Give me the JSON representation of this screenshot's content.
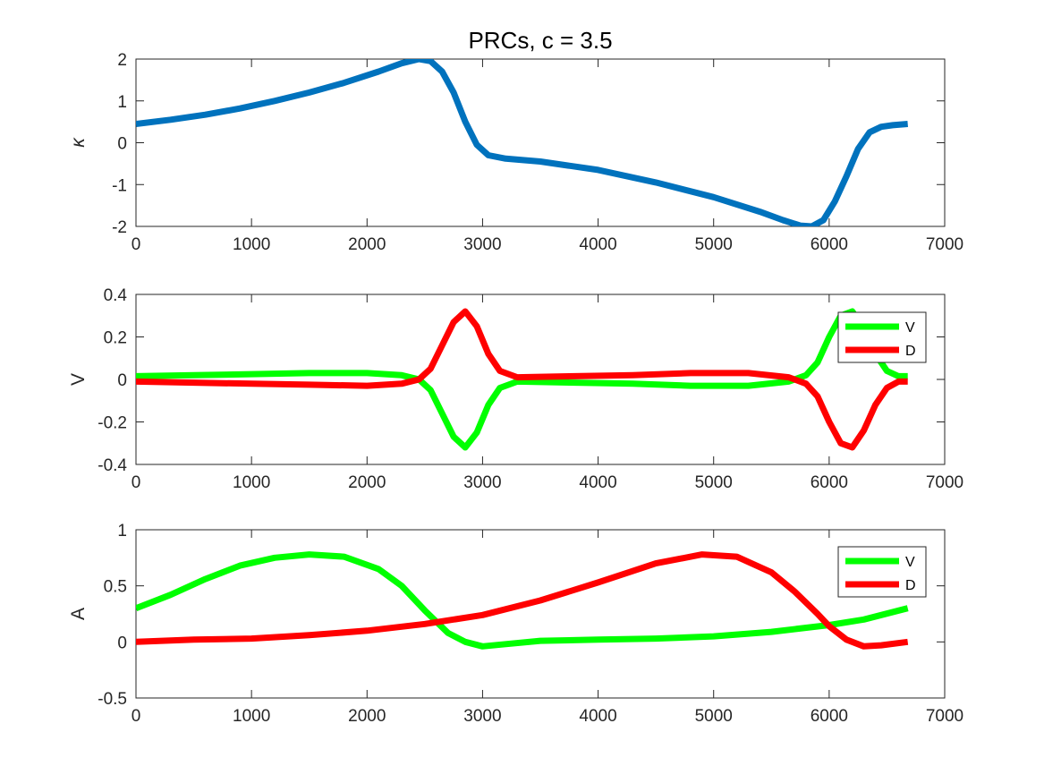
{
  "title": "PRCs, c = 3.5",
  "chart_data": [
    {
      "type": "line",
      "ylabel": "κ",
      "xlim": [
        0,
        7000
      ],
      "ylim": [
        -2,
        2
      ],
      "xticks": [
        0,
        1000,
        2000,
        3000,
        4000,
        5000,
        6000,
        7000
      ],
      "yticks": [
        -2,
        -1,
        0,
        1,
        2
      ],
      "xtick_labels": [
        "0",
        "1000",
        "2000",
        "3000",
        "4000",
        "5000",
        "6000",
        "7000"
      ],
      "ytick_labels": [
        "-2",
        "-1",
        "0",
        "1",
        "2"
      ],
      "legend": null,
      "series": [
        {
          "color": "#0072BD",
          "x": [
            0,
            300,
            600,
            900,
            1200,
            1500,
            1800,
            2100,
            2300,
            2450,
            2550,
            2650,
            2750,
            2850,
            2950,
            3050,
            3200,
            3500,
            4000,
            4500,
            5000,
            5400,
            5600,
            5750,
            5850,
            5950,
            6050,
            6150,
            6250,
            6350,
            6450,
            6550,
            6680
          ],
          "y": [
            0.45,
            0.55,
            0.67,
            0.82,
            1.0,
            1.2,
            1.43,
            1.7,
            1.9,
            2.0,
            1.95,
            1.7,
            1.2,
            0.5,
            -0.05,
            -0.3,
            -0.38,
            -0.45,
            -0.65,
            -0.95,
            -1.3,
            -1.65,
            -1.85,
            -1.98,
            -2.0,
            -1.85,
            -1.4,
            -0.8,
            -0.15,
            0.25,
            0.38,
            0.42,
            0.45
          ]
        }
      ]
    },
    {
      "type": "line",
      "ylabel": "V",
      "xlim": [
        0,
        7000
      ],
      "ylim": [
        -0.4,
        0.4
      ],
      "xticks": [
        0,
        1000,
        2000,
        3000,
        4000,
        5000,
        6000,
        7000
      ],
      "yticks": [
        -0.4,
        -0.2,
        0,
        0.2,
        0.4
      ],
      "xtick_labels": [
        "0",
        "1000",
        "2000",
        "3000",
        "4000",
        "5000",
        "6000",
        "7000"
      ],
      "ytick_labels": [
        "-0.4",
        "-0.2",
        "0",
        "0.2",
        "0.4"
      ],
      "legend": "top-right",
      "series": [
        {
          "name": "V",
          "color": "#00FF00",
          "x": [
            0,
            500,
            1000,
            1500,
            2000,
            2300,
            2450,
            2550,
            2650,
            2750,
            2850,
            2950,
            3050,
            3150,
            3300,
            3800,
            4300,
            4800,
            5300,
            5650,
            5800,
            5900,
            6000,
            6100,
            6200,
            6300,
            6400,
            6500,
            6600,
            6680
          ],
          "y": [
            0.015,
            0.02,
            0.025,
            0.03,
            0.03,
            0.02,
            0.0,
            -0.05,
            -0.16,
            -0.27,
            -0.32,
            -0.25,
            -0.12,
            -0.04,
            -0.01,
            -0.015,
            -0.02,
            -0.03,
            -0.03,
            -0.01,
            0.02,
            0.08,
            0.2,
            0.3,
            0.32,
            0.24,
            0.12,
            0.04,
            0.015,
            0.015
          ]
        },
        {
          "name": "D",
          "color": "#FF0000",
          "x": [
            0,
            500,
            1000,
            1500,
            2000,
            2300,
            2450,
            2550,
            2650,
            2750,
            2850,
            2950,
            3050,
            3150,
            3300,
            3800,
            4300,
            4800,
            5300,
            5650,
            5800,
            5900,
            6000,
            6100,
            6200,
            6300,
            6400,
            6500,
            6600,
            6680
          ],
          "y": [
            -0.01,
            -0.015,
            -0.02,
            -0.025,
            -0.03,
            -0.02,
            0.0,
            0.05,
            0.16,
            0.27,
            0.32,
            0.25,
            0.12,
            0.04,
            0.01,
            0.015,
            0.02,
            0.03,
            0.03,
            0.01,
            -0.02,
            -0.08,
            -0.2,
            -0.3,
            -0.32,
            -0.24,
            -0.12,
            -0.04,
            -0.01,
            -0.01
          ]
        }
      ]
    },
    {
      "type": "line",
      "ylabel": "A",
      "xlim": [
        0,
        7000
      ],
      "ylim": [
        -0.5,
        1
      ],
      "xticks": [
        0,
        1000,
        2000,
        3000,
        4000,
        5000,
        6000,
        7000
      ],
      "yticks": [
        -0.5,
        0,
        0.5,
        1
      ],
      "xtick_labels": [
        "0",
        "1000",
        "2000",
        "3000",
        "4000",
        "5000",
        "6000",
        "7000"
      ],
      "ytick_labels": [
        "-0.5",
        "0",
        "0.5",
        "1"
      ],
      "legend": "top-right",
      "series": [
        {
          "name": "V",
          "color": "#00FF00",
          "x": [
            0,
            300,
            600,
            900,
            1200,
            1500,
            1800,
            2100,
            2300,
            2500,
            2700,
            2850,
            3000,
            3200,
            3500,
            4000,
            4500,
            5000,
            5500,
            6000,
            6300,
            6680
          ],
          "y": [
            0.3,
            0.42,
            0.56,
            0.68,
            0.75,
            0.78,
            0.76,
            0.65,
            0.5,
            0.28,
            0.08,
            0.0,
            -0.04,
            -0.02,
            0.01,
            0.02,
            0.03,
            0.05,
            0.09,
            0.15,
            0.2,
            0.3
          ]
        },
        {
          "name": "D",
          "color": "#FF0000",
          "x": [
            0,
            500,
            1000,
            1500,
            2000,
            2500,
            3000,
            3500,
            4000,
            4500,
            4900,
            5200,
            5500,
            5700,
            5900,
            6000,
            6150,
            6300,
            6450,
            6680
          ],
          "y": [
            0.0,
            0.02,
            0.03,
            0.06,
            0.1,
            0.16,
            0.24,
            0.37,
            0.53,
            0.7,
            0.78,
            0.76,
            0.62,
            0.45,
            0.25,
            0.14,
            0.02,
            -0.04,
            -0.03,
            0.0
          ]
        }
      ]
    }
  ]
}
